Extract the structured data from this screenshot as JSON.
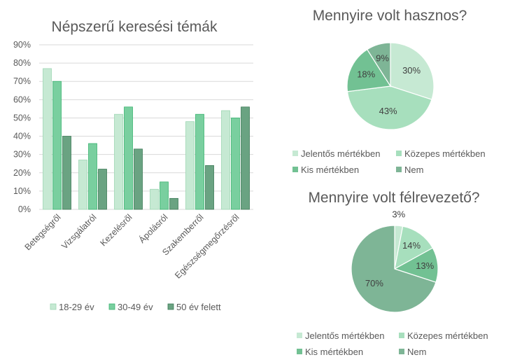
{
  "colors": {
    "bar_series": [
      "#c6e9d3",
      "#79cf9f",
      "#6aa382"
    ],
    "bar_strokes": [
      "#9fd6b4",
      "#3cb371",
      "#3d7a57"
    ],
    "pie_slices": [
      "#c6e9d3",
      "#a7dfbd",
      "#72c193",
      "#7eb596"
    ],
    "grid": "#d9d9d9",
    "text": "#595959"
  },
  "chart_data": [
    {
      "type": "bar",
      "title": "Népszerű keresési témák",
      "categories": [
        "Betegségről",
        "Vizsgálatról",
        "Kezelésről",
        "Ápolásról",
        "Szakemberről",
        "Egészségmegőrzésről"
      ],
      "series": [
        {
          "name": "18-29 év",
          "values": [
            77,
            27,
            52,
            11,
            48,
            54
          ]
        },
        {
          "name": "30-49 év",
          "values": [
            70,
            36,
            56,
            15,
            52,
            50
          ]
        },
        {
          "name": "50 év felett",
          "values": [
            40,
            22,
            33,
            6,
            24,
            56
          ]
        }
      ],
      "ylim": [
        0,
        90
      ],
      "yticks": [
        "0%",
        "10%",
        "20%",
        "30%",
        "40%",
        "50%",
        "60%",
        "70%",
        "80%",
        "90%"
      ],
      "grid": true,
      "legend": "bottom"
    },
    {
      "type": "pie",
      "title": "Mennyire volt hasznos?",
      "labels": [
        "Jelentős mértékben",
        "Közepes mértékben",
        "Kis mértékben",
        "Nem"
      ],
      "values": [
        30,
        43,
        18,
        9
      ],
      "value_labels": [
        "30%",
        "43%",
        "18%",
        "9%"
      ],
      "legend": "bottom"
    },
    {
      "type": "pie",
      "title": "Mennyire volt félrevezető?",
      "labels": [
        "Jelentős mértékben",
        "Közepes mértékben",
        "Kis mértékben",
        "Nem"
      ],
      "values": [
        3,
        14,
        13,
        70
      ],
      "value_labels": [
        "3%",
        "14%",
        "13%",
        "70%"
      ],
      "legend": "bottom"
    }
  ]
}
